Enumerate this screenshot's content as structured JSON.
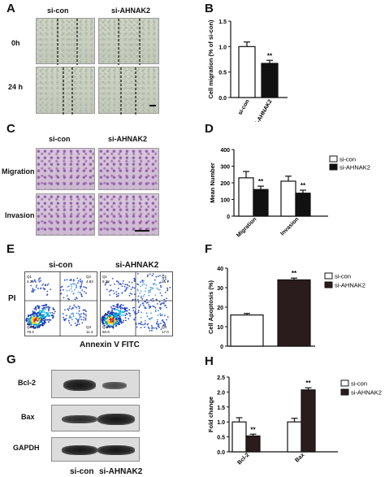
{
  "panels": {
    "A": {
      "letter": "A",
      "cols": [
        "si-con",
        "si-AHNAK2"
      ],
      "rows": [
        "0h",
        "24 h"
      ]
    },
    "B": {
      "letter": "B"
    },
    "C": {
      "letter": "C",
      "cols": [
        "si-con",
        "si-AHNAK2"
      ],
      "rows": [
        "Migration",
        "Invasion"
      ]
    },
    "D": {
      "letter": "D"
    },
    "E": {
      "letter": "E",
      "cols": [
        "si-con",
        "si-AHNAK2"
      ],
      "ylabel": "PI",
      "xlabel": "Annexin V FITC",
      "quadrants": {
        "con": [
          "Q1",
          "4.35",
          "Q2",
          "4.83",
          "Q4",
          "79.4",
          "Q3",
          "11.4"
        ],
        "kd": [
          "Q1",
          "9.32",
          "Q2",
          "16.7",
          "Q4",
          "56.9",
          "Q3",
          "17.0"
        ]
      }
    },
    "F": {
      "letter": "F"
    },
    "G": {
      "letter": "G",
      "rows": [
        "Bcl-2",
        "Bax",
        "GAPDH"
      ],
      "cols": [
        "si-con",
        "si-AHNAK2"
      ]
    },
    "H": {
      "letter": "H"
    }
  },
  "chart_data": [
    {
      "id": "B",
      "type": "bar",
      "categories": [
        "si-con",
        "si-AHNAK2"
      ],
      "values": [
        1.0,
        0.67
      ],
      "errors": [
        0.09,
        0.06
      ],
      "colors": [
        "#ffffff",
        "#111111"
      ],
      "ylabel": "Cell migration (% of si-con)",
      "ylim": [
        0.0,
        1.5
      ],
      "yticks": [
        "0.0",
        "0.5",
        "1.0",
        "1.5"
      ],
      "annotations": [
        "",
        "**"
      ]
    },
    {
      "id": "D",
      "type": "bar",
      "categories": [
        "Migration",
        "Invasion"
      ],
      "series": [
        {
          "name": "si-con",
          "values": [
            230,
            210
          ],
          "errors": [
            38,
            30
          ],
          "color": "#ffffff"
        },
        {
          "name": "si-AHNAK2",
          "values": [
            160,
            138
          ],
          "errors": [
            20,
            18
          ],
          "color": "#111111"
        }
      ],
      "ylabel": "Mean Number",
      "ylim": [
        0,
        400
      ],
      "yticks": [
        "0",
        "100",
        "200",
        "300",
        "400"
      ],
      "annotations": [
        "**",
        "**"
      ],
      "legend": "top-right"
    },
    {
      "id": "F",
      "type": "bar",
      "categories": [
        "si-con",
        "si-AHNAK2"
      ],
      "values": [
        16,
        34
      ],
      "errors": [
        0.8,
        0.9
      ],
      "colors": [
        "#ffffff",
        "#2a1c1c"
      ],
      "ylabel": "Cell Apoptosis (%)",
      "ylim": [
        0,
        40
      ],
      "yticks": [
        "0",
        "10",
        "20",
        "30",
        "40"
      ],
      "annotations": [
        "",
        "**"
      ],
      "legend_labels": [
        "si-con",
        "si-AHNAK2"
      ],
      "legend": "right"
    },
    {
      "id": "H",
      "type": "bar",
      "categories": [
        "Bcl-2",
        "Bax"
      ],
      "series": [
        {
          "name": "si-con",
          "values": [
            1.0,
            1.0
          ],
          "errors": [
            0.14,
            0.12
          ],
          "color": "#ffffff"
        },
        {
          "name": "si-AHNAK2",
          "values": [
            0.53,
            2.07
          ],
          "errors": [
            0.06,
            0.07
          ],
          "color": "#2a1c1c"
        }
      ],
      "ylabel": "Fold change",
      "ylim": [
        0.0,
        2.5
      ],
      "yticks": [
        "0.0",
        "0.5",
        "1.0",
        "1.5",
        "2.0",
        "2.5"
      ],
      "annotations": [
        "**",
        "**"
      ],
      "legend": "top-right"
    }
  ]
}
